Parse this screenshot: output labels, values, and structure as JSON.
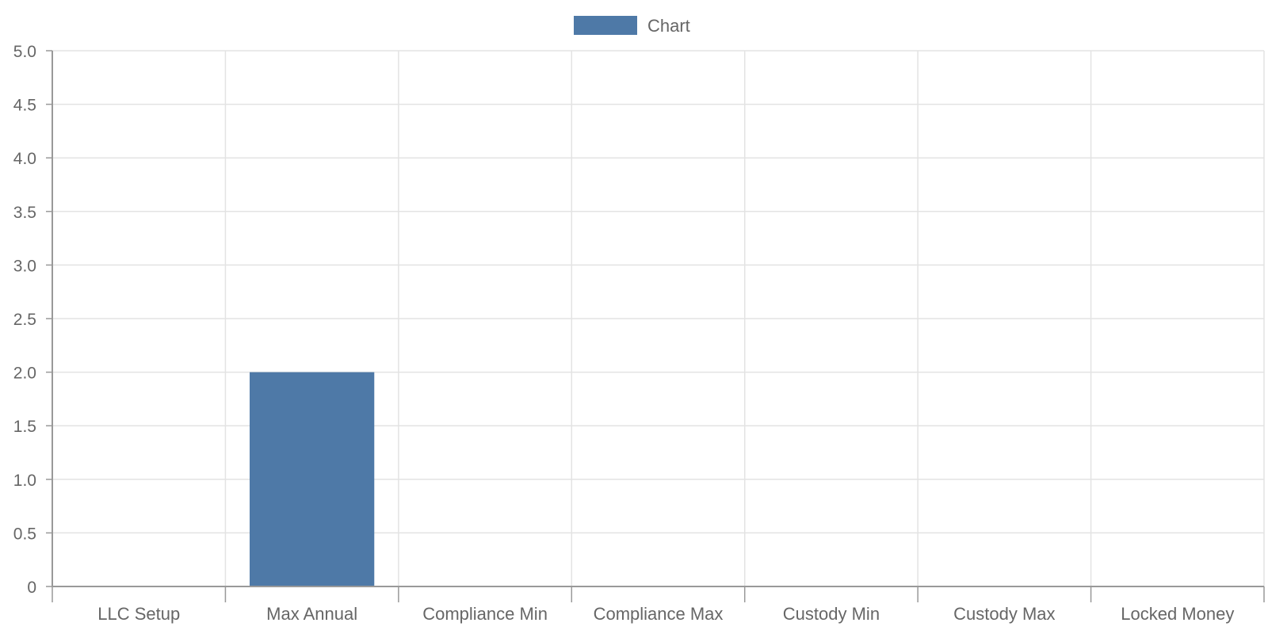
{
  "chart_data": {
    "type": "bar",
    "categories": [
      "LLC Setup",
      "Max Annual",
      "Compliance Min",
      "Compliance Max",
      "Custody Min",
      "Custody Max",
      "Locked Money"
    ],
    "series": [
      {
        "name": "Chart",
        "values": [
          0,
          2,
          0,
          0,
          0,
          0,
          0
        ],
        "color": "#4e79a7"
      }
    ],
    "y_ticks": [
      "0",
      "0.5",
      "1.0",
      "1.5",
      "2.0",
      "2.5",
      "3.0",
      "3.5",
      "4.0",
      "4.5",
      "5.0"
    ],
    "ylim": [
      0,
      5
    ],
    "y_step": 0.5,
    "grid": true,
    "legend_position": "top-center"
  }
}
